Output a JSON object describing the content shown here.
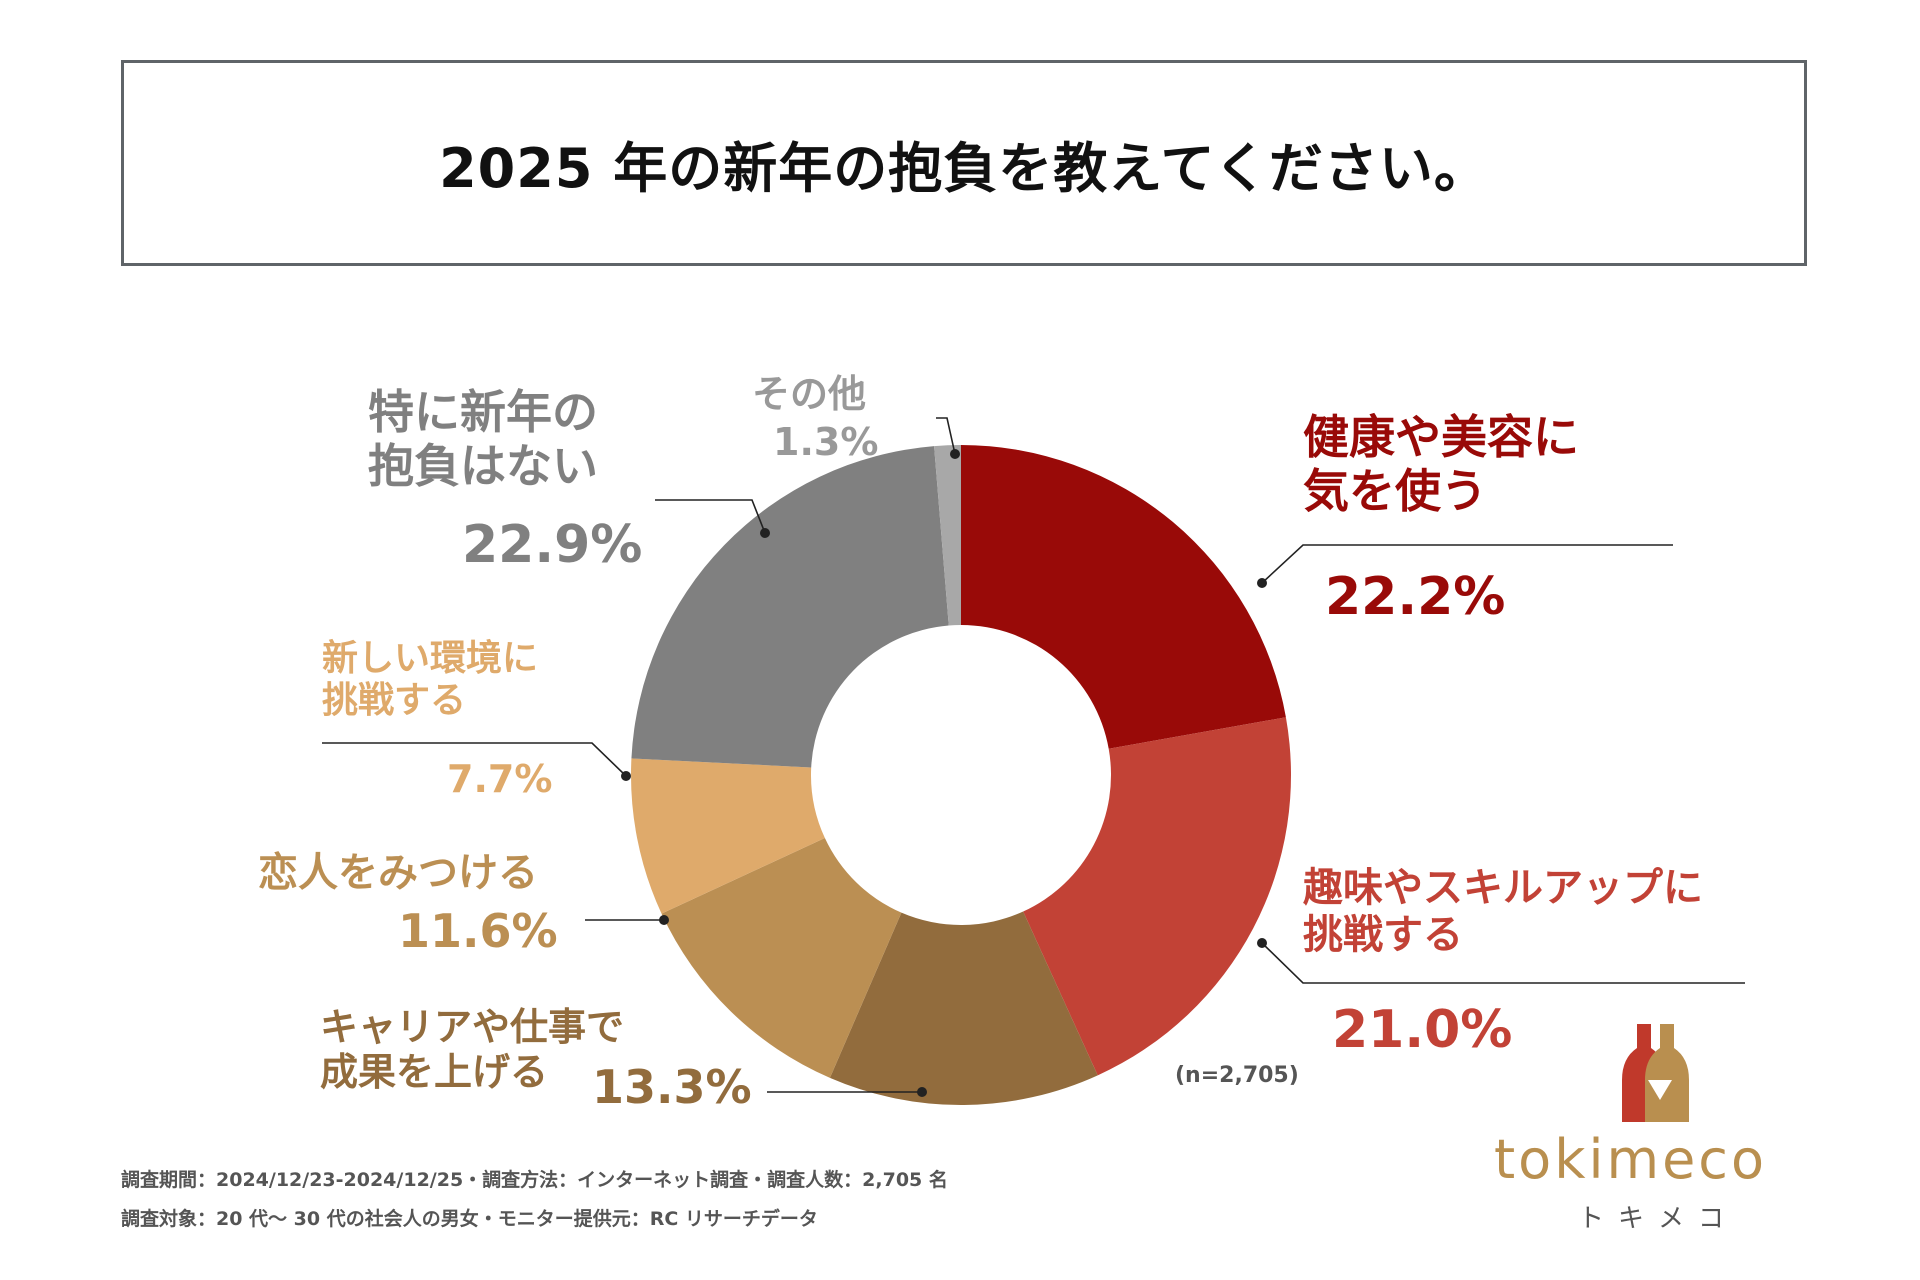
{
  "title": "2025 年の新年の抱負を教えてください。",
  "chart_data": {
    "type": "pie",
    "variant": "donut",
    "categories": [
      "健康や美容に気を使う",
      "趣味やスキルアップに挑戦する",
      "キャリアや仕事で成果を上げる",
      "恋人をみつける",
      "新しい環境に挑戦する",
      "特に新年の抱負はない",
      "その他"
    ],
    "values": [
      22.2,
      21.0,
      13.3,
      11.6,
      7.7,
      22.9,
      1.3
    ],
    "colors": [
      "#990a08",
      "#c24236",
      "#926c3d",
      "#bb8f53",
      "#dfaa6b",
      "#808080",
      "#a8a8a8"
    ],
    "labels": {
      "health": {
        "line1": "健康や美容に",
        "line2": "気を使う",
        "pct": "22.2%"
      },
      "hobby": {
        "line1": "趣味やスキルアップに",
        "line2": "挑戦する",
        "pct": "21.0%"
      },
      "career": {
        "line1": "キャリアや仕事で",
        "line2": "成果を上げる",
        "pct": "13.3%"
      },
      "lover": {
        "line1": "恋人をみつける",
        "pct": "11.6%"
      },
      "env": {
        "line1": "新しい環境に",
        "line2": "挑戦する",
        "pct": "7.7%"
      },
      "none": {
        "line1": "特に新年の",
        "line2": "抱負はない",
        "pct": "22.9%"
      },
      "other": {
        "line1": "その他",
        "pct": "1.3%"
      }
    },
    "sample_size": "(n=2,705)"
  },
  "footer": {
    "line1": "調査期間：2024/12/23-2024/12/25・調査方法：インターネット調査・調査人数：2,705 名",
    "line2": "調査対象：20 代～ 30 代の社会人の男女・モニター提供元：RC リサーチデータ"
  },
  "logo": {
    "text": "tokimeco",
    "kana": "トキメコ"
  }
}
